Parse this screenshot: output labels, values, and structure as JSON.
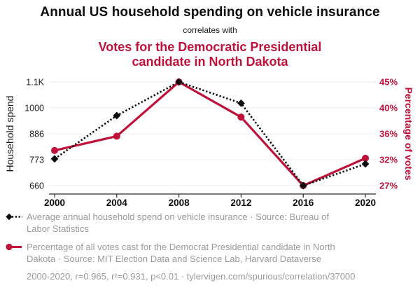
{
  "header": {
    "title": "Annual US household spending on vehicle insurance",
    "subtitle": "correlates with",
    "secondary_title": "Votes for the Democratic Presidential candidate in North Dakota"
  },
  "colors": {
    "accent_red": "#be123a",
    "series_black": "#0d0d0d",
    "legend_text": "#9a9a9a",
    "gridline": "#ececec",
    "axis_line": "#2b2b2b",
    "tick_label": "#1a1a1a"
  },
  "chart_data": {
    "type": "line",
    "x": [
      2000,
      2004,
      2008,
      2012,
      2016,
      2020
    ],
    "x_tick_labels": [
      "2000",
      "2004",
      "2008",
      "2012",
      "2016",
      "2020"
    ],
    "series": [
      {
        "name": "Average annual household spend on vehicle insurance",
        "axis": "left",
        "line_style": "dotted",
        "marker": "diamond",
        "color": "#0d0d0d",
        "values": [
          777,
          966,
          1113,
          1020,
          660,
          755
        ]
      },
      {
        "name": "Percentage of all votes cast for the Democrat Presidential candidate in North Dakota",
        "axis": "right",
        "line_style": "solid",
        "marker": "circle",
        "color": "#be123a",
        "values": [
          33.1,
          35.5,
          44.6,
          38.7,
          27.2,
          31.8
        ]
      }
    ],
    "left_axis": {
      "label": "Household spend",
      "tick_labels": [
        "660",
        "773",
        "886",
        "1000",
        "1.1K"
      ],
      "range": [
        660,
        1113
      ]
    },
    "right_axis": {
      "label": "Percentage of votes",
      "tick_labels": [
        "27%",
        "32%",
        "36%",
        "40%",
        "45%"
      ],
      "range": [
        27.2,
        44.6
      ]
    },
    "grid": true,
    "legend_position": "bottom"
  },
  "legend": {
    "items": [
      {
        "marker": "black-diamond-dotted-line",
        "text": "Average annual household spend on vehicle insurance · Source: Bureau of Labor Statistics"
      },
      {
        "marker": "red-circle-solid-line",
        "text": "Percentage of all votes cast for the Democrat Presidential candidate in North Dakota · Source: MIT Election Data and Science Lab, Harvard Dataverse"
      }
    ],
    "footnote": "2000-2020, r=0.965, r²=0.931, p<0.01 · tylervigen.com/spurious/correlation/37000"
  }
}
